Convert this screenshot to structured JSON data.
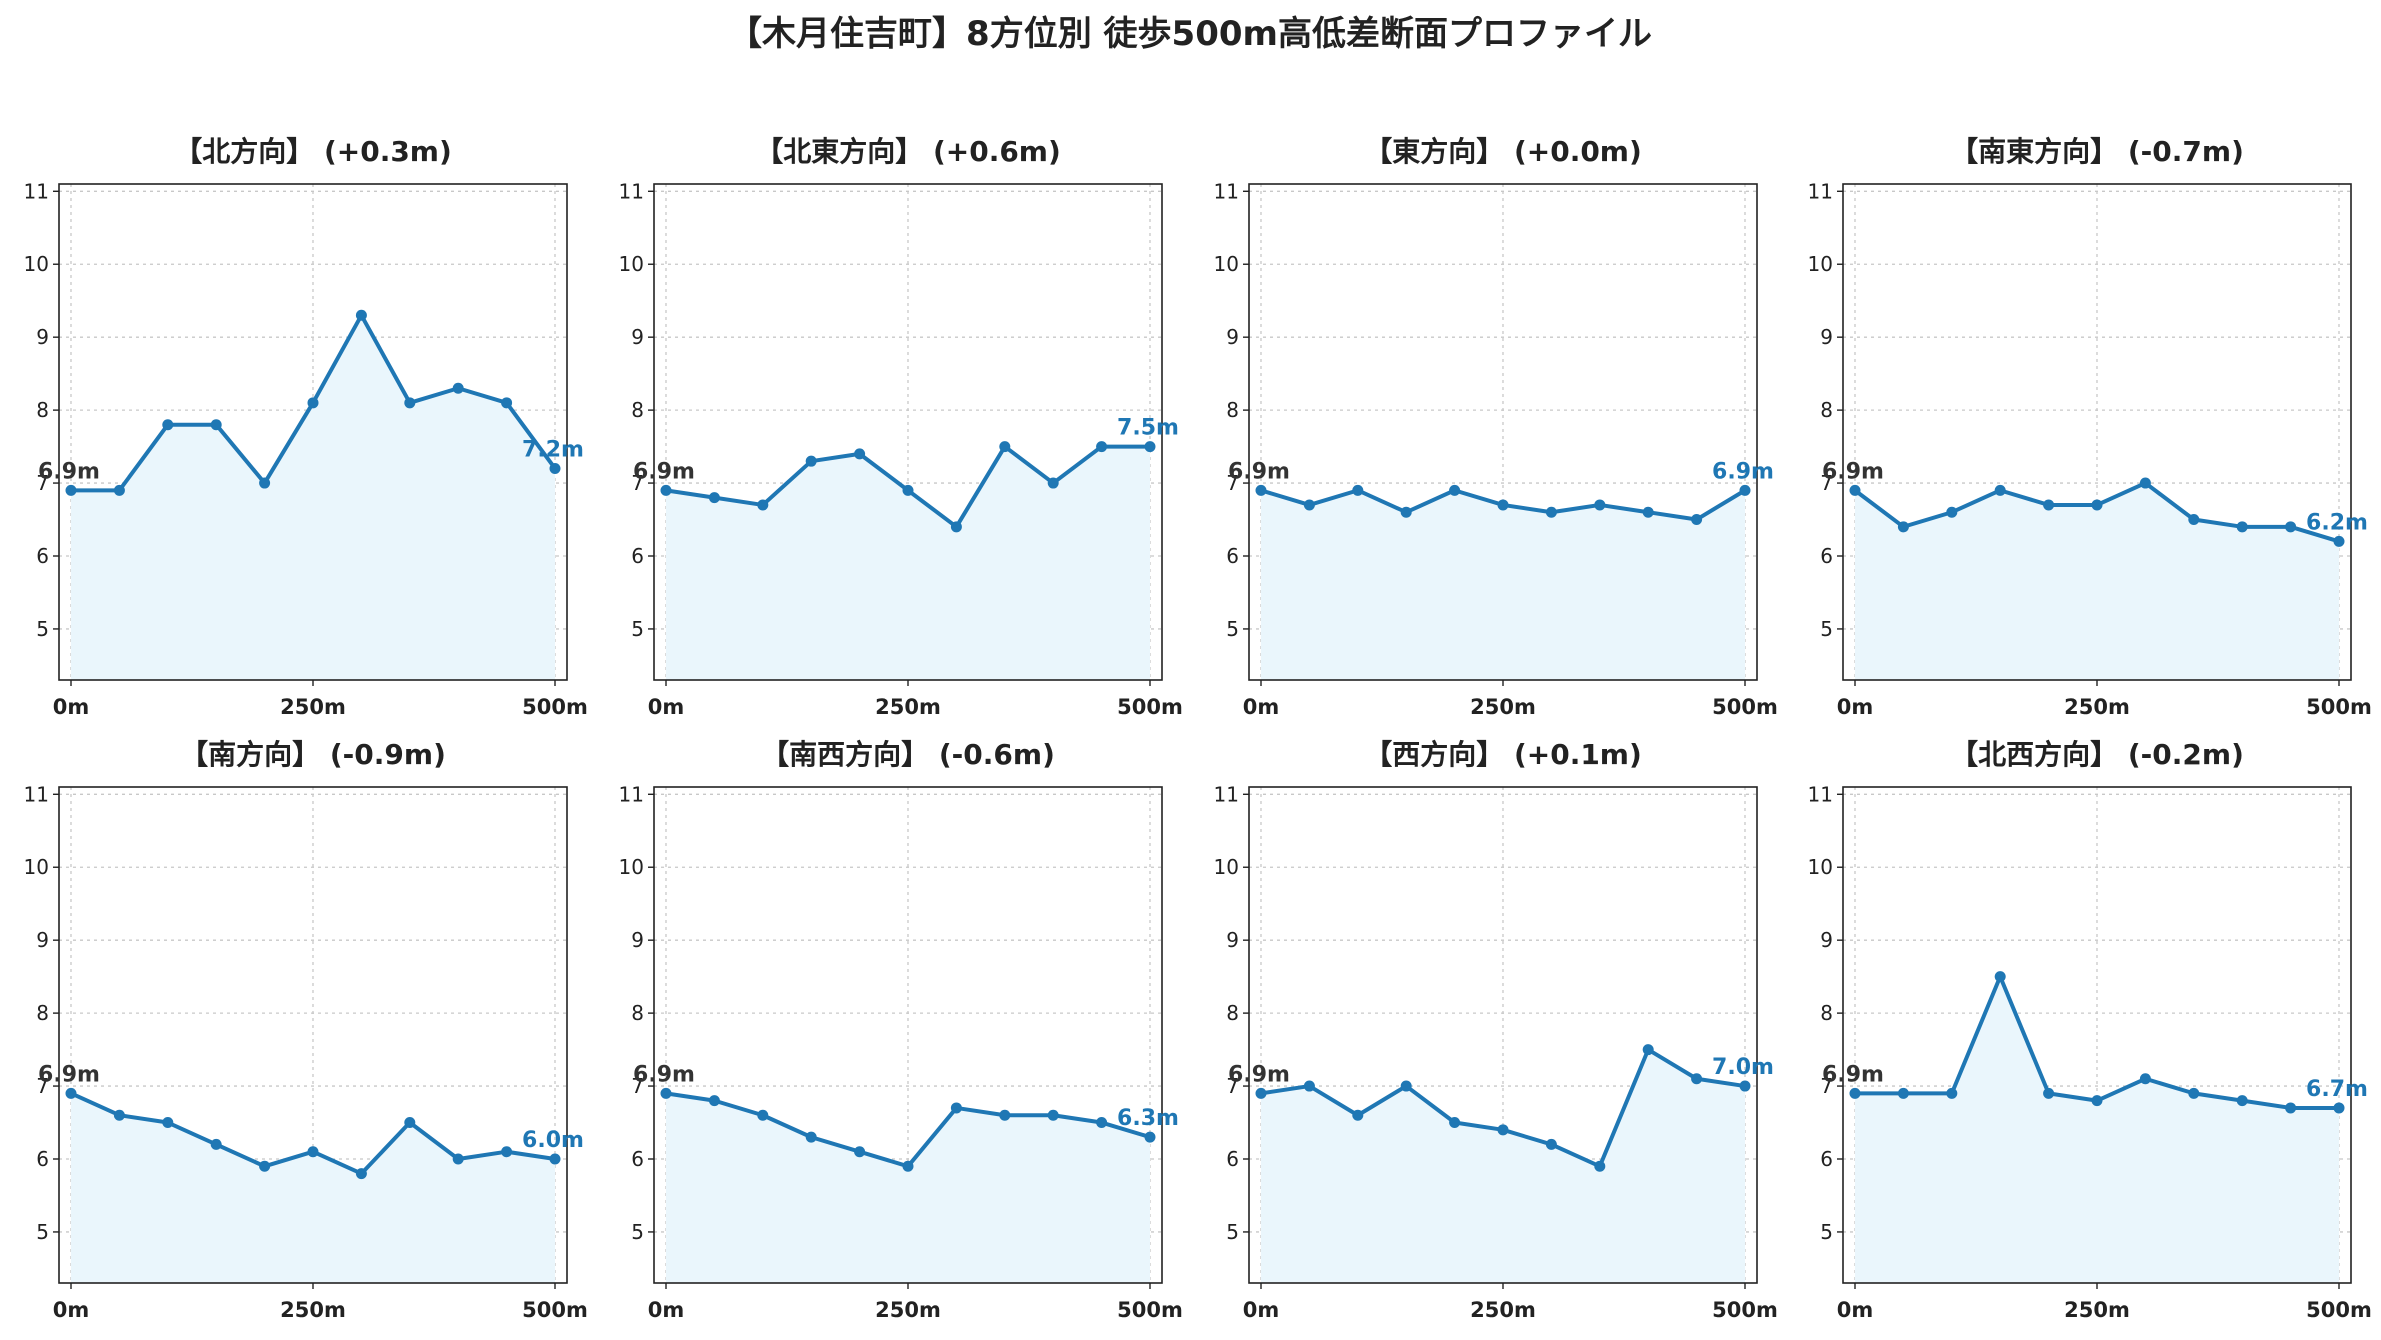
{
  "title": "【木月住吉町】8方位別 徒歩500m高低差断面プロファイル",
  "colors": {
    "line": "#1f77b4",
    "area": "#eaf6fc",
    "start_label": "#333333",
    "end_label": "#1f77b4"
  },
  "chart_data": [
    {
      "type": "area",
      "title": "【北方向】 (+0.3m)",
      "x": [
        0,
        50,
        100,
        150,
        200,
        250,
        300,
        350,
        400,
        450,
        500
      ],
      "values": [
        6.9,
        6.9,
        7.8,
        7.8,
        7.0,
        8.1,
        9.3,
        8.1,
        8.3,
        8.1,
        7.2
      ],
      "start_label": "6.9m",
      "end_label": "7.2m",
      "xticks": [
        "0m",
        "250m",
        "500m"
      ],
      "yticks": [
        "5",
        "6",
        "7",
        "8",
        "9",
        "10",
        "11"
      ],
      "xlim": [
        0,
        500
      ],
      "ylim": [
        4.3,
        11.1
      ],
      "grid": true
    },
    {
      "type": "area",
      "title": "【北東方向】 (+0.6m)",
      "x": [
        0,
        50,
        100,
        150,
        200,
        250,
        300,
        350,
        400,
        450,
        500
      ],
      "values": [
        6.9,
        6.8,
        6.7,
        7.3,
        7.4,
        6.9,
        6.4,
        7.5,
        7.0,
        7.5,
        7.5
      ],
      "start_label": "6.9m",
      "end_label": "7.5m",
      "xticks": [
        "0m",
        "250m",
        "500m"
      ],
      "yticks": [
        "5",
        "6",
        "7",
        "8",
        "9",
        "10",
        "11"
      ],
      "xlim": [
        0,
        500
      ],
      "ylim": [
        4.3,
        11.1
      ],
      "grid": true
    },
    {
      "type": "area",
      "title": "【東方向】 (+0.0m)",
      "x": [
        0,
        50,
        100,
        150,
        200,
        250,
        300,
        350,
        400,
        450,
        500
      ],
      "values": [
        6.9,
        6.7,
        6.9,
        6.6,
        6.9,
        6.7,
        6.6,
        6.7,
        6.6,
        6.5,
        6.9
      ],
      "start_label": "6.9m",
      "end_label": "6.9m",
      "xticks": [
        "0m",
        "250m",
        "500m"
      ],
      "yticks": [
        "5",
        "6",
        "7",
        "8",
        "9",
        "10",
        "11"
      ],
      "xlim": [
        0,
        500
      ],
      "ylim": [
        4.3,
        11.1
      ],
      "grid": true
    },
    {
      "type": "area",
      "title": "【南東方向】 (-0.7m)",
      "x": [
        0,
        50,
        100,
        150,
        200,
        250,
        300,
        350,
        400,
        450,
        500
      ],
      "values": [
        6.9,
        6.4,
        6.6,
        6.9,
        6.7,
        6.7,
        7.0,
        6.5,
        6.4,
        6.4,
        6.2
      ],
      "start_label": "6.9m",
      "end_label": "6.2m",
      "xticks": [
        "0m",
        "250m",
        "500m"
      ],
      "yticks": [
        "5",
        "6",
        "7",
        "8",
        "9",
        "10",
        "11"
      ],
      "xlim": [
        0,
        500
      ],
      "ylim": [
        4.3,
        11.1
      ],
      "grid": true
    },
    {
      "type": "area",
      "title": "【南方向】 (-0.9m)",
      "x": [
        0,
        50,
        100,
        150,
        200,
        250,
        300,
        350,
        400,
        450,
        500
      ],
      "values": [
        6.9,
        6.6,
        6.5,
        6.2,
        5.9,
        6.1,
        5.8,
        6.5,
        6.0,
        6.1,
        6.0
      ],
      "start_label": "6.9m",
      "end_label": "6.0m",
      "xticks": [
        "0m",
        "250m",
        "500m"
      ],
      "yticks": [
        "5",
        "6",
        "7",
        "8",
        "9",
        "10",
        "11"
      ],
      "xlim": [
        0,
        500
      ],
      "ylim": [
        4.3,
        11.1
      ],
      "grid": true
    },
    {
      "type": "area",
      "title": "【南西方向】 (-0.6m)",
      "x": [
        0,
        50,
        100,
        150,
        200,
        250,
        300,
        350,
        400,
        450,
        500
      ],
      "values": [
        6.9,
        6.8,
        6.6,
        6.3,
        6.1,
        5.9,
        6.7,
        6.6,
        6.6,
        6.5,
        6.3
      ],
      "start_label": "6.9m",
      "end_label": "6.3m",
      "xticks": [
        "0m",
        "250m",
        "500m"
      ],
      "yticks": [
        "5",
        "6",
        "7",
        "8",
        "9",
        "10",
        "11"
      ],
      "xlim": [
        0,
        500
      ],
      "ylim": [
        4.3,
        11.1
      ],
      "grid": true
    },
    {
      "type": "area",
      "title": "【西方向】 (+0.1m)",
      "x": [
        0,
        50,
        100,
        150,
        200,
        250,
        300,
        350,
        400,
        450,
        500
      ],
      "values": [
        6.9,
        7.0,
        6.6,
        7.0,
        6.5,
        6.4,
        6.2,
        5.9,
        7.5,
        7.1,
        7.0
      ],
      "start_label": "6.9m",
      "end_label": "7.0m",
      "xticks": [
        "0m",
        "250m",
        "500m"
      ],
      "yticks": [
        "5",
        "6",
        "7",
        "8",
        "9",
        "10",
        "11"
      ],
      "xlim": [
        0,
        500
      ],
      "ylim": [
        4.3,
        11.1
      ],
      "grid": true
    },
    {
      "type": "area",
      "title": "【北西方向】 (-0.2m)",
      "x": [
        0,
        50,
        100,
        150,
        200,
        250,
        300,
        350,
        400,
        450,
        500
      ],
      "values": [
        6.9,
        6.9,
        6.9,
        8.5,
        6.9,
        6.8,
        7.1,
        6.9,
        6.8,
        6.7,
        6.7
      ],
      "start_label": "6.9m",
      "end_label": "6.7m",
      "xticks": [
        "0m",
        "250m",
        "500m"
      ],
      "yticks": [
        "5",
        "6",
        "7",
        "8",
        "9",
        "10",
        "11"
      ],
      "xlim": [
        0,
        500
      ],
      "ylim": [
        4.3,
        11.1
      ],
      "grid": true
    }
  ]
}
